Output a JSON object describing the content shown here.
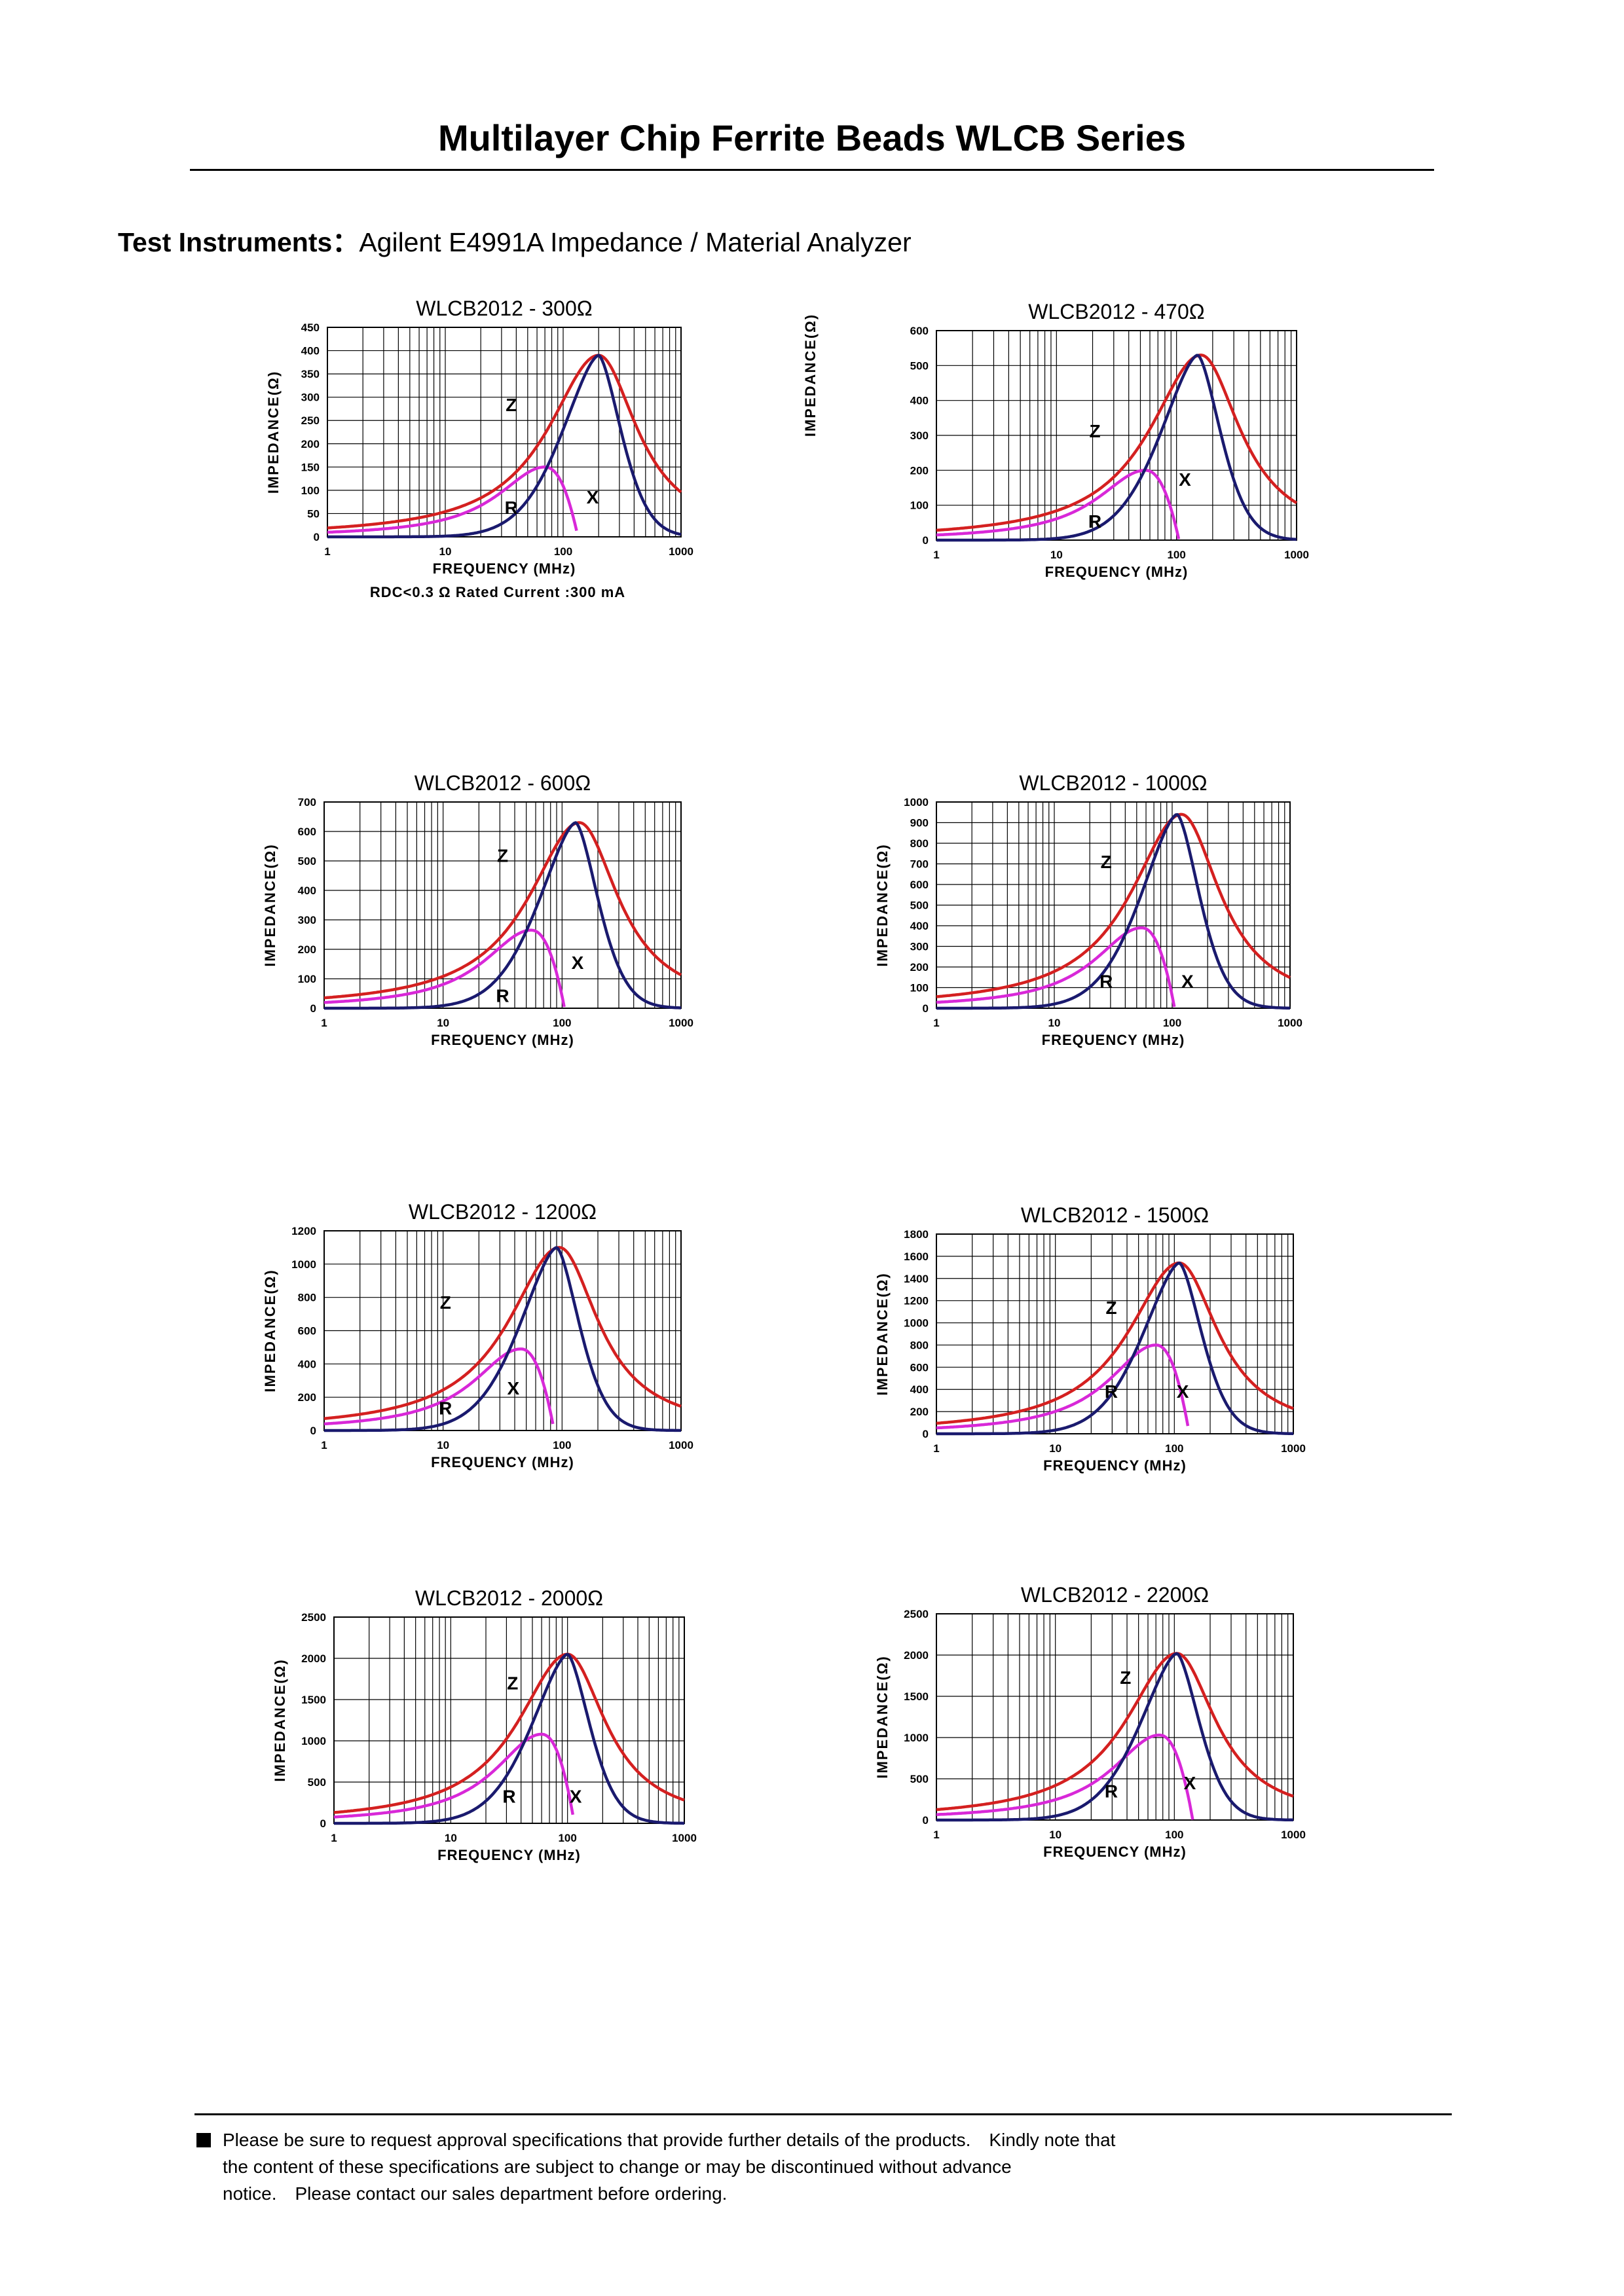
{
  "header": {
    "title": "Multilayer Chip Ferrite Beads WLCB Series",
    "instruments_label": "Test Instruments：",
    "instruments_value": "Agilent E4991A Impedance / Material Analyzer"
  },
  "axis_labels": {
    "y": "IMPEDANCE(Ω)",
    "x": "FREQUENCY (MHz)",
    "x_ticks": [
      "1",
      "10",
      "100",
      "1000"
    ]
  },
  "chart_note": "RDC<0.3 Ω Rated Current :300 mA",
  "colors": {
    "Z": "#d42020",
    "R": "#1a1a6e",
    "X": "#d828d8",
    "grid": "#000000"
  },
  "chart_data": [
    {
      "type": "line",
      "title": "WLCB2012 - 300Ω",
      "x_scale": "log",
      "xlim": [
        1,
        1000
      ],
      "ylim": [
        0,
        450
      ],
      "yticks": [
        0,
        50,
        100,
        150,
        200,
        250,
        300,
        350,
        400,
        450
      ],
      "peak": {
        "Z": [
          200,
          390
        ],
        "R": [
          200,
          390
        ],
        "X": [
          70,
          150
        ]
      },
      "series": [
        {
          "name": "Z"
        },
        {
          "name": "R"
        },
        {
          "name": "X"
        }
      ]
    },
    {
      "type": "line",
      "title": "WLCB2012 - 470Ω",
      "x_scale": "log",
      "xlim": [
        1,
        1000
      ],
      "ylim": [
        0,
        600
      ],
      "yticks": [
        0,
        100,
        200,
        300,
        400,
        500,
        600
      ],
      "peak": {
        "Z": [
          160,
          530
        ],
        "R": [
          150,
          530
        ],
        "X": [
          55,
          200
        ]
      },
      "series": [
        {
          "name": "Z"
        },
        {
          "name": "R"
        },
        {
          "name": "X"
        }
      ]
    },
    {
      "type": "line",
      "title": "WLCB2012 - 600Ω",
      "x_scale": "log",
      "xlim": [
        1,
        1000
      ],
      "ylim": [
        0,
        700
      ],
      "yticks": [
        0,
        100,
        200,
        300,
        400,
        500,
        600,
        700
      ],
      "peak": {
        "Z": [
          140,
          630
        ],
        "R": [
          130,
          630
        ],
        "X": [
          55,
          265
        ]
      },
      "series": [
        {
          "name": "Z"
        },
        {
          "name": "R"
        },
        {
          "name": "X"
        }
      ]
    },
    {
      "type": "line",
      "title": "WLCB2012 - 1000Ω",
      "x_scale": "log",
      "xlim": [
        1,
        1000
      ],
      "ylim": [
        0,
        1000
      ],
      "yticks": [
        0,
        100,
        200,
        300,
        400,
        500,
        600,
        700,
        800,
        900,
        1000
      ],
      "peak": {
        "Z": [
          120,
          940
        ],
        "R": [
          110,
          940
        ],
        "X": [
          55,
          390
        ]
      },
      "series": [
        {
          "name": "Z"
        },
        {
          "name": "R"
        },
        {
          "name": "X"
        }
      ]
    },
    {
      "type": "line",
      "title": "WLCB2012 - 1200Ω",
      "x_scale": "log",
      "xlim": [
        1,
        1000
      ],
      "ylim": [
        0,
        1200
      ],
      "yticks": [
        0,
        200,
        400,
        600,
        800,
        1000,
        1200
      ],
      "peak": {
        "Z": [
          95,
          1100
        ],
        "R": [
          90,
          1100
        ],
        "X": [
          45,
          490
        ]
      },
      "series": [
        {
          "name": "Z"
        },
        {
          "name": "R"
        },
        {
          "name": "X"
        }
      ]
    },
    {
      "type": "line",
      "title": "WLCB2012 - 1500Ω",
      "x_scale": "log",
      "xlim": [
        1,
        1000
      ],
      "ylim": [
        0,
        1800
      ],
      "yticks": [
        0,
        200,
        400,
        600,
        800,
        1000,
        1200,
        1400,
        1600,
        1800
      ],
      "peak": {
        "Z": [
          110,
          1540
        ],
        "R": [
          110,
          1540
        ],
        "X": [
          70,
          800
        ]
      },
      "series": [
        {
          "name": "Z"
        },
        {
          "name": "R"
        },
        {
          "name": "X"
        }
      ]
    },
    {
      "type": "line",
      "title": "WLCB2012 - 2000Ω",
      "x_scale": "log",
      "xlim": [
        1,
        1000
      ],
      "ylim": [
        0,
        2500
      ],
      "yticks": [
        0,
        500,
        1000,
        1500,
        2000,
        2500
      ],
      "peak": {
        "Z": [
          100,
          2050
        ],
        "R": [
          100,
          2050
        ],
        "X": [
          60,
          1080
        ]
      },
      "series": [
        {
          "name": "Z"
        },
        {
          "name": "R"
        },
        {
          "name": "X"
        }
      ]
    },
    {
      "type": "line",
      "title": "WLCB2012 - 2200Ω",
      "x_scale": "log",
      "xlim": [
        1,
        1000
      ],
      "ylim": [
        0,
        2500
      ],
      "yticks": [
        0,
        500,
        1000,
        1500,
        2000,
        2500
      ],
      "peak": {
        "Z": [
          105,
          2020
        ],
        "R": [
          105,
          2020
        ],
        "X": [
          75,
          1030
        ]
      },
      "series": [
        {
          "name": "Z"
        },
        {
          "name": "R"
        },
        {
          "name": "X"
        }
      ]
    }
  ],
  "footer": {
    "line1": "Please be sure to request approval specifications that provide further details of the products.　Kindly note that",
    "line2": "the content of these specifications are subject to change or may be discontinued without advance",
    "line3": "notice.　Please contact our sales department before ordering."
  }
}
